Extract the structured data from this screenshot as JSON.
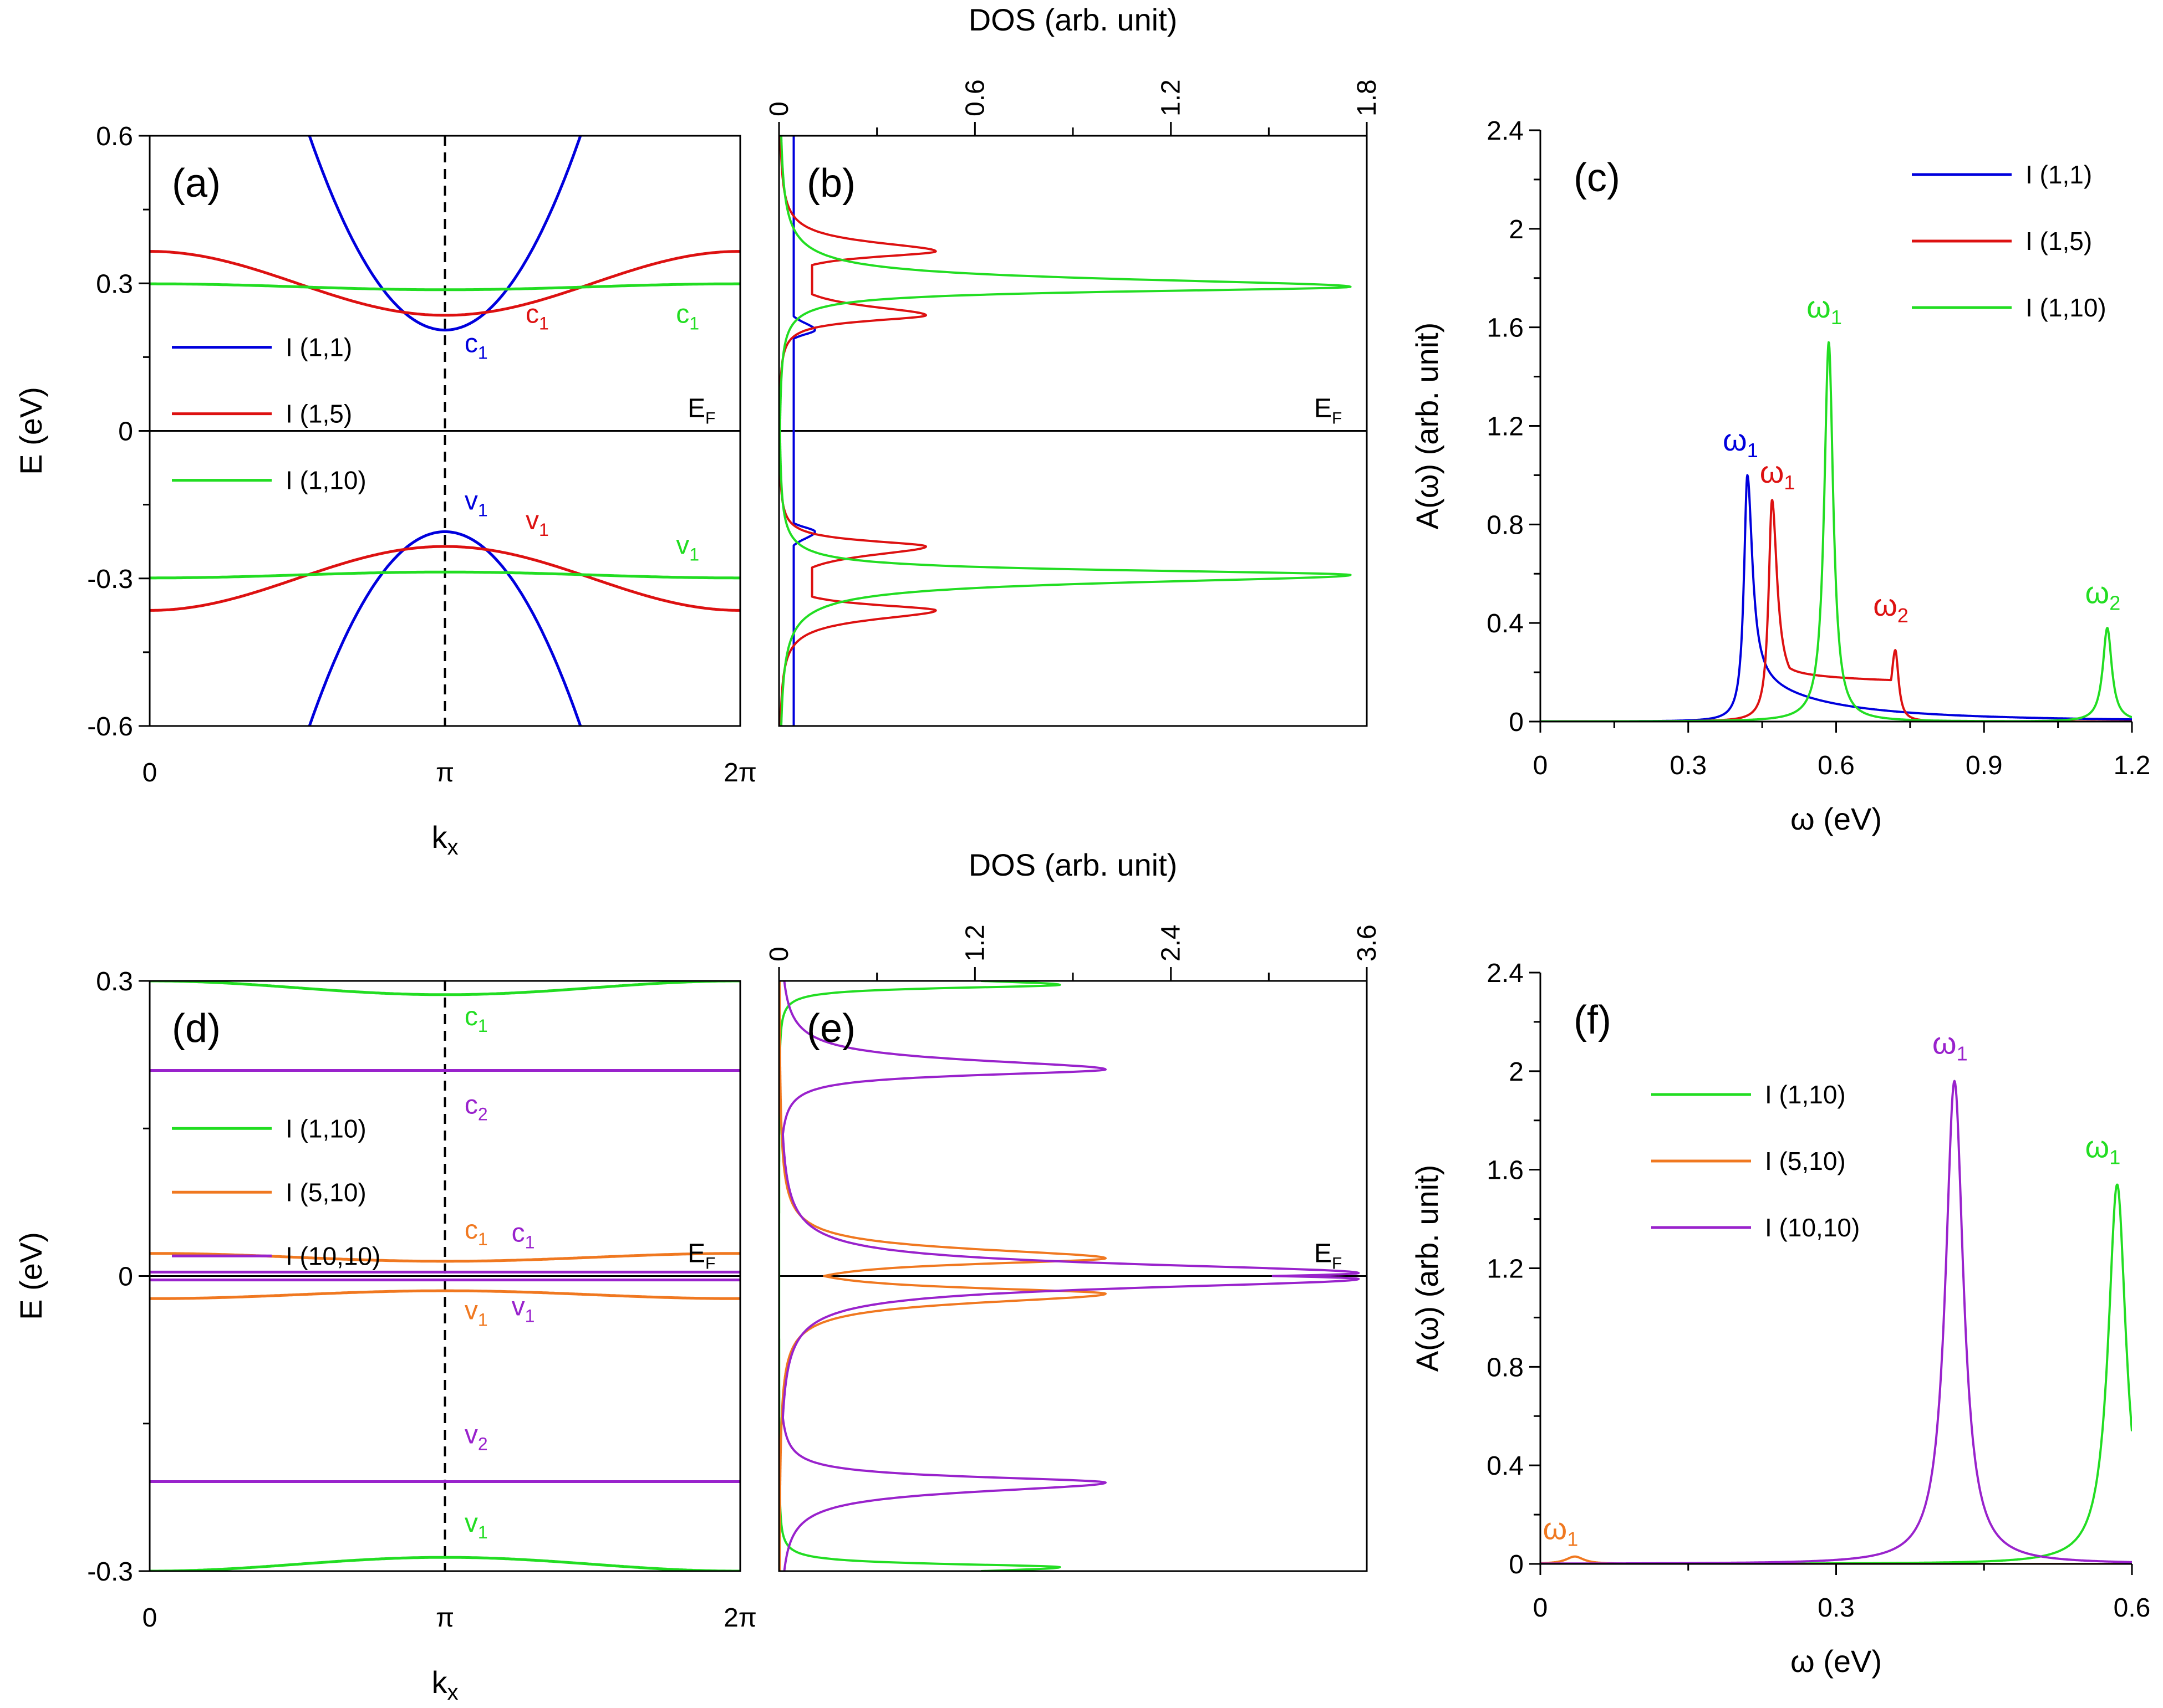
{
  "chart_data": [
    {
      "id": "a",
      "type": "line",
      "label": "(a)",
      "xlabel": "kx",
      "ylabel": "E (eV)",
      "xlim": [
        0,
        6.2832
      ],
      "ylim": [
        -0.6,
        0.6
      ],
      "xticks": [
        {
          "v": 0,
          "t": "0"
        },
        {
          "v": 3.1416,
          "t": "π"
        },
        {
          "v": 6.2832,
          "t": "2π"
        }
      ],
      "yticks": [
        {
          "v": 0.6,
          "t": "0.6"
        },
        {
          "v": 0.3,
          "t": "0.3"
        },
        {
          "v": 0,
          "t": "0"
        },
        {
          "v": -0.3,
          "t": "-0.3"
        },
        {
          "v": -0.6,
          "t": "-0.6"
        }
      ],
      "fermi_label": "E",
      "fermi_sub": "F",
      "legend": [
        {
          "name": "I (1,1)",
          "color": "#0000dd"
        },
        {
          "name": "I (1,5)",
          "color": "#dd1111"
        },
        {
          "name": "I (1,10)",
          "color": "#22dd22"
        }
      ],
      "bands": [
        {
          "series": "I (1,1)",
          "color": "#0000dd",
          "model": "parabola",
          "e0": 0.205,
          "curv": 0.19
        },
        {
          "series": "I (1,1)",
          "color": "#0000dd",
          "model": "parabola",
          "e0": -0.205,
          "curv": -0.19
        },
        {
          "series": "I (1,5)",
          "color": "#dd1111",
          "model": "cosine",
          "mid": 0.3,
          "amp": 0.065
        },
        {
          "series": "I (1,5)",
          "color": "#dd1111",
          "model": "cosine",
          "mid": -0.3,
          "amp": -0.065
        },
        {
          "series": "I (1,10)",
          "color": "#22dd22",
          "model": "cosine",
          "mid": 0.293,
          "amp": 0.006
        },
        {
          "series": "I (1,10)",
          "color": "#22dd22",
          "model": "cosine",
          "mid": -0.293,
          "amp": -0.006
        }
      ],
      "annotations": [
        {
          "t": "c",
          "s": "1",
          "color": "#0000dd",
          "x": 3.35,
          "y": 0.16
        },
        {
          "t": "c",
          "s": "1",
          "color": "#dd1111",
          "x": 4.0,
          "y": 0.22
        },
        {
          "t": "c",
          "s": "1",
          "color": "#22dd22",
          "x": 5.6,
          "y": 0.22
        },
        {
          "t": "v",
          "s": "1",
          "color": "#0000dd",
          "x": 3.35,
          "y": -0.16
        },
        {
          "t": "v",
          "s": "1",
          "color": "#dd1111",
          "x": 4.0,
          "y": -0.2
        },
        {
          "t": "v",
          "s": "1",
          "color": "#22dd22",
          "x": 5.6,
          "y": -0.25
        }
      ]
    },
    {
      "id": "b",
      "type": "line",
      "label": "(b)",
      "xlabel": "DOS (arb. unit)",
      "xlim": [
        0,
        1.8
      ],
      "ylim": [
        -0.6,
        0.6
      ],
      "xticks": [
        {
          "v": 0,
          "t": "0"
        },
        {
          "v": 0.6,
          "t": "0.6"
        },
        {
          "v": 1.2,
          "t": "1.2"
        },
        {
          "v": 1.8,
          "t": "1.8"
        }
      ],
      "fermi_label": "E",
      "fermi_sub": "F",
      "series": [
        {
          "name": "I (1,1)",
          "color": "#0000dd",
          "peaks": [
            {
              "e": 0.205,
              "h": 0.11
            }
          ],
          "tail": 0.045
        },
        {
          "name": "I (1,5)",
          "color": "#dd1111",
          "peaks": [
            {
              "e": 0.235,
              "h": 0.45
            },
            {
              "e": 0.365,
              "h": 0.48
            }
          ],
          "mid": 0.3,
          "fill": 0.3
        },
        {
          "name": "I (1,10)",
          "color": "#22dd22",
          "peaks": [
            {
              "e": 0.293,
              "h": 1.75
            }
          ],
          "width": 0.012
        }
      ]
    },
    {
      "id": "c",
      "type": "line",
      "label": "(c)",
      "xlabel": "ω (eV)",
      "ylabel": "A(ω) (arb. unit)",
      "xlim": [
        0,
        1.2
      ],
      "ylim": [
        0,
        2.4
      ],
      "xticks": [
        {
          "v": 0,
          "t": "0"
        },
        {
          "v": 0.3,
          "t": "0.3"
        },
        {
          "v": 0.6,
          "t": "0.6"
        },
        {
          "v": 0.9,
          "t": "0.9"
        },
        {
          "v": 1.2,
          "t": "1.2"
        }
      ],
      "yticks": [
        {
          "v": 0,
          "t": "0"
        },
        {
          "v": 0.4,
          "t": "0.4"
        },
        {
          "v": 0.8,
          "t": "0.8"
        },
        {
          "v": 1.2,
          "t": "1.2"
        },
        {
          "v": 1.6,
          "t": "1.6"
        },
        {
          "v": 2.0,
          "t": "2"
        },
        {
          "v": 2.4,
          "t": "2.4"
        }
      ],
      "legend": [
        {
          "name": "I (1,1)",
          "color": "#0000dd"
        },
        {
          "name": "I (1,5)",
          "color": "#dd1111"
        },
        {
          "name": "I (1,10)",
          "color": "#22dd22"
        }
      ],
      "series": [
        {
          "name": "I (1,1)",
          "color": "#0000dd",
          "onset": 0.41,
          "peak": 0.42,
          "height": 1.0,
          "tail": 0.02
        },
        {
          "name": "I (1,5)",
          "color": "#dd1111",
          "onset": 0.47,
          "peak": 0.47,
          "height": 0.9,
          "second": {
            "w": 0.72,
            "h": 0.29
          }
        },
        {
          "name": "I (1,10)",
          "color": "#22dd22",
          "peaks": [
            {
              "w": 0.585,
              "h": 1.54
            },
            {
              "w": 1.15,
              "h": 0.38
            }
          ]
        }
      ],
      "annotations": [
        {
          "t": "ω",
          "s": "1",
          "color": "#0000dd",
          "x": 0.415,
          "y": 1.1
        },
        {
          "t": "ω",
          "s": "1",
          "color": "#dd1111",
          "x": 0.49,
          "y": 0.97
        },
        {
          "t": "ω",
          "s": "1",
          "color": "#22dd22",
          "x": 0.585,
          "y": 1.64
        },
        {
          "t": "ω",
          "s": "2",
          "color": "#dd1111",
          "x": 0.72,
          "y": 0.43
        },
        {
          "t": "ω",
          "s": "2",
          "color": "#22dd22",
          "x": 1.15,
          "y": 0.48
        }
      ]
    },
    {
      "id": "d",
      "type": "line",
      "label": "(d)",
      "xlabel": "kx",
      "ylabel": "E (eV)",
      "xlim": [
        0,
        6.2832
      ],
      "ylim": [
        -0.3,
        0.3
      ],
      "xticks": [
        {
          "v": 0,
          "t": "0"
        },
        {
          "v": 3.1416,
          "t": "π"
        },
        {
          "v": 6.2832,
          "t": "2π"
        }
      ],
      "yticks": [
        {
          "v": 0.3,
          "t": "0.3"
        },
        {
          "v": 0,
          "t": "0"
        },
        {
          "v": -0.3,
          "t": "-0.3"
        }
      ],
      "fermi_label": "E",
      "fermi_sub": "F",
      "legend": [
        {
          "name": "I (1,10)",
          "color": "#22dd22"
        },
        {
          "name": "I (5,10)",
          "color": "#f07820"
        },
        {
          "name": "I (10,10)",
          "color": "#9922cc"
        }
      ],
      "bands": [
        {
          "series": "I (1,10)",
          "color": "#22dd22",
          "model": "cosine",
          "mid": 0.293,
          "amp": 0.007
        },
        {
          "series": "I (1,10)",
          "color": "#22dd22",
          "model": "cosine",
          "mid": -0.293,
          "amp": -0.007
        },
        {
          "series": "I (5,10)",
          "color": "#f07820",
          "model": "cosine",
          "mid": 0.019,
          "amp": 0.004
        },
        {
          "series": "I (5,10)",
          "color": "#f07820",
          "model": "cosine",
          "mid": -0.019,
          "amp": -0.004
        },
        {
          "series": "I (10,10)",
          "color": "#9922cc",
          "model": "cosine",
          "mid": 0.209,
          "amp": 0.0
        },
        {
          "series": "I (10,10)",
          "color": "#9922cc",
          "model": "cosine",
          "mid": -0.209,
          "amp": 0.0
        },
        {
          "series": "I (10,10)",
          "color": "#9922cc",
          "model": "cosine",
          "mid": 0.004,
          "amp": 0.0
        },
        {
          "series": "I (10,10)",
          "color": "#9922cc",
          "model": "cosine",
          "mid": -0.004,
          "amp": 0.0
        }
      ],
      "annotations": [
        {
          "t": "c",
          "s": "1",
          "color": "#22dd22",
          "x": 3.35,
          "y": 0.255
        },
        {
          "t": "c",
          "s": "2",
          "color": "#9922cc",
          "x": 3.35,
          "y": 0.165
        },
        {
          "t": "c",
          "s": "1",
          "color": "#f07820",
          "x": 3.35,
          "y": 0.038
        },
        {
          "t": "c",
          "s": "1",
          "color": "#9922cc",
          "x": 3.85,
          "y": 0.035
        },
        {
          "t": "v",
          "s": "1",
          "color": "#f07820",
          "x": 3.35,
          "y": -0.044
        },
        {
          "t": "v",
          "s": "1",
          "color": "#9922cc",
          "x": 3.85,
          "y": -0.04
        },
        {
          "t": "v",
          "s": "2",
          "color": "#9922cc",
          "x": 3.35,
          "y": -0.17
        },
        {
          "t": "v",
          "s": "1",
          "color": "#22dd22",
          "x": 3.35,
          "y": -0.26
        }
      ]
    },
    {
      "id": "e",
      "type": "line",
      "label": "(e)",
      "xlabel": "DOS (arb. unit)",
      "xlim": [
        0,
        3.6
      ],
      "ylim": [
        -0.3,
        0.3
      ],
      "xticks": [
        {
          "v": 0,
          "t": "0"
        },
        {
          "v": 1.2,
          "t": "1.2"
        },
        {
          "v": 2.4,
          "t": "2.4"
        },
        {
          "v": 3.6,
          "t": "3.6"
        }
      ],
      "fermi_label": "E",
      "fermi_sub": "F",
      "series": [
        {
          "name": "I (1,10)",
          "color": "#22dd22",
          "peaks": [
            {
              "e": 0.296,
              "h": 1.72
            }
          ],
          "width": 0.004
        },
        {
          "name": "I (5,10)",
          "color": "#f07820",
          "peaks": [
            {
              "e": 0.018,
              "h": 2.0
            },
            {
              "e": -0.018,
              "h": 2.0
            }
          ],
          "mid": 0.0,
          "fill": 1.0
        },
        {
          "name": "I (10,10)",
          "color": "#9922cc",
          "peaks": [
            {
              "e": 0.21,
              "h": 2.0
            },
            {
              "e": 0.003,
              "h": 3.55
            }
          ]
        }
      ]
    },
    {
      "id": "f",
      "type": "line",
      "label": "(f)",
      "xlabel": "ω (eV)",
      "ylabel": "A(ω) (arb. unit)",
      "xlim": [
        0,
        0.6
      ],
      "ylim": [
        0,
        2.4
      ],
      "xticks": [
        {
          "v": 0,
          "t": "0"
        },
        {
          "v": 0.3,
          "t": "0.3"
        },
        {
          "v": 0.6,
          "t": "0.6"
        }
      ],
      "yticks": [
        {
          "v": 0,
          "t": "0"
        },
        {
          "v": 0.4,
          "t": "0.4"
        },
        {
          "v": 0.8,
          "t": "0.8"
        },
        {
          "v": 1.2,
          "t": "1.2"
        },
        {
          "v": 1.6,
          "t": "1.6"
        },
        {
          "v": 2.0,
          "t": "2"
        },
        {
          "v": 2.4,
          "t": "2.4"
        }
      ],
      "legend": [
        {
          "name": "I (1,10)",
          "color": "#22dd22"
        },
        {
          "name": "I (5,10)",
          "color": "#f07820"
        },
        {
          "name": "I (10,10)",
          "color": "#9922cc"
        }
      ],
      "series": [
        {
          "name": "I (1,10)",
          "color": "#22dd22",
          "peaks": [
            {
              "w": 0.585,
              "h": 1.54
            }
          ]
        },
        {
          "name": "I (5,10)",
          "color": "#f07820",
          "peaks": [
            {
              "w": 0.035,
              "h": 0.03
            }
          ]
        },
        {
          "name": "I (10,10)",
          "color": "#9922cc",
          "peaks": [
            {
              "w": 0.42,
              "h": 1.96
            }
          ]
        }
      ],
      "annotations": [
        {
          "t": "ω",
          "s": "1",
          "color": "#f07820",
          "x": 0.025,
          "y": 0.1
        },
        {
          "t": "ω",
          "s": "1",
          "color": "#9922cc",
          "x": 0.42,
          "y": 2.07
        },
        {
          "t": "ω",
          "s": "1",
          "color": "#22dd22",
          "x": 0.575,
          "y": 1.65
        }
      ]
    }
  ]
}
